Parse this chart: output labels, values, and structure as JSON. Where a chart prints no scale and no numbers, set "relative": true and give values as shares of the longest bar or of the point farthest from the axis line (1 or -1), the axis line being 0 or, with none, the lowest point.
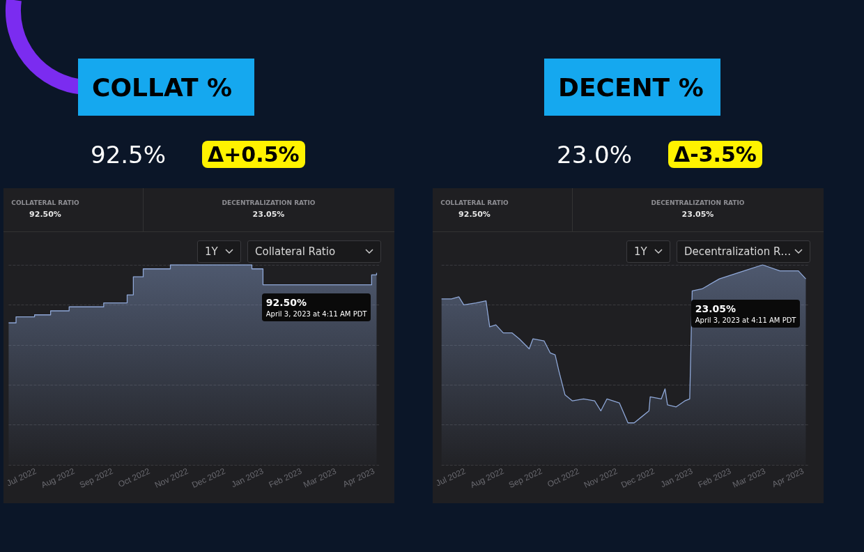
{
  "chart_data": [
    {
      "type": "step",
      "title": "COLLAT %",
      "relative": true,
      "grid": "y",
      "marker": "none",
      "xlim": [
        "2022-06-09",
        "2023-04-05"
      ],
      "xticks": [
        {
          "value": "2022-07-01",
          "label": "Jul 2022"
        },
        {
          "value": "2022-08-01",
          "label": "Aug 2022"
        },
        {
          "value": "2022-09-01",
          "label": "Sep 2022"
        },
        {
          "value": "2022-10-01",
          "label": "Oct 2022"
        },
        {
          "value": "2022-11-01",
          "label": "Nov 2022"
        },
        {
          "value": "2022-12-01",
          "label": "Dec 2022"
        },
        {
          "value": "2023-01-01",
          "label": "Jan 2023"
        },
        {
          "value": "2023-02-01",
          "label": "Feb 2023"
        },
        {
          "value": "2023-03-01",
          "label": "Mar 2023"
        },
        {
          "value": "2023-04-01",
          "label": "Apr 2023"
        }
      ],
      "series": [
        {
          "color": "#8fa8d8",
          "x": [
            "2022-06-09",
            "2022-06-15",
            "2022-06-30",
            "2022-07-13",
            "2022-07-28",
            "2022-08-25",
            "2022-09-13",
            "2022-09-18",
            "2022-09-26",
            "2022-10-18",
            "2022-12-23",
            "2023-01-01",
            "2023-03-30",
            "2023-04-03"
          ],
          "values": [
            0.71,
            0.74,
            0.75,
            0.77,
            0.79,
            0.81,
            0.85,
            0.94,
            0.98,
            1,
            0.98,
            0.9,
            0.95,
            0.96
          ]
        }
      ],
      "annotations": [
        "92.5%",
        "Δ+0.5%",
        "COLLATERAL RATIO",
        "92.50%",
        "DECENTRALIZATION RATIO",
        "23.05%",
        "1Y",
        "Collateral Ratio",
        "92.50%",
        "April 3, 2023 at 4:11 AM PDT"
      ]
    },
    {
      "type": "area",
      "title": "DECENT %",
      "relative": true,
      "grid": "y",
      "marker": "none",
      "xlim": [
        "2022-06-12",
        "2023-04-05"
      ],
      "xticks": [
        {
          "value": "2022-07-01",
          "label": "Jul 2022"
        },
        {
          "value": "2022-08-01",
          "label": "Aug 2022"
        },
        {
          "value": "2022-09-01",
          "label": "Sep 2022"
        },
        {
          "value": "2022-10-01",
          "label": "Oct 2022"
        },
        {
          "value": "2022-11-01",
          "label": "Nov 2022"
        },
        {
          "value": "2022-12-01",
          "label": "Dec 2022"
        },
        {
          "value": "2023-01-01",
          "label": "Jan 2023"
        },
        {
          "value": "2023-02-01",
          "label": "Feb 2023"
        },
        {
          "value": "2023-03-01",
          "label": "Mar 2023"
        },
        {
          "value": "2023-04-01",
          "label": "Apr 2023"
        }
      ],
      "series": [
        {
          "color": "#8fa8d8",
          "x": [
            "2022-06-12",
            "2022-06-20",
            "2022-06-26",
            "2022-06-30",
            "2022-07-10",
            "2022-07-18",
            "2022-07-21",
            "2022-07-26",
            "2022-08-01",
            "2022-08-08",
            "2022-08-14",
            "2022-08-22",
            "2022-08-25",
            "2022-09-03",
            "2022-09-08",
            "2022-09-12",
            "2022-09-15",
            "2022-09-20",
            "2022-09-26",
            "2022-10-05",
            "2022-10-14",
            "2022-10-19",
            "2022-10-24",
            "2022-11-03",
            "2022-11-10",
            "2022-11-15",
            "2022-11-21",
            "2022-11-27",
            "2022-11-28",
            "2022-12-07",
            "2022-12-10",
            "2022-12-12",
            "2022-12-19",
            "2022-12-26",
            "2022-12-30",
            "2023-01-01",
            "2023-01-09",
            "2023-01-23",
            "2023-02-12",
            "2023-02-27",
            "2023-03-13",
            "2023-03-28",
            "2023-04-03"
          ],
          "values": [
            0.83,
            0.83,
            0.84,
            0.8,
            0.81,
            0.82,
            0.69,
            0.7,
            0.66,
            0.66,
            0.63,
            0.58,
            0.63,
            0.62,
            0.56,
            0.55,
            0.47,
            0.35,
            0.32,
            0.33,
            0.32,
            0.27,
            0.33,
            0.31,
            0.21,
            0.21,
            0.24,
            0.27,
            0.34,
            0.33,
            0.38,
            0.3,
            0.29,
            0.32,
            0.33,
            0.87,
            0.88,
            0.93,
            0.97,
            1,
            0.97,
            0.97,
            0.93
          ]
        }
      ],
      "annotations": [
        "23.0%",
        "Δ-3.5%",
        "COLLATERAL RATIO",
        "92.50%",
        "DECENTRALIZATION RATIO",
        "23.05%",
        "1Y",
        "Decentralization R…",
        "23.05%",
        "April 3, 2023 at 4:11 AM PDT"
      ]
    }
  ]
}
